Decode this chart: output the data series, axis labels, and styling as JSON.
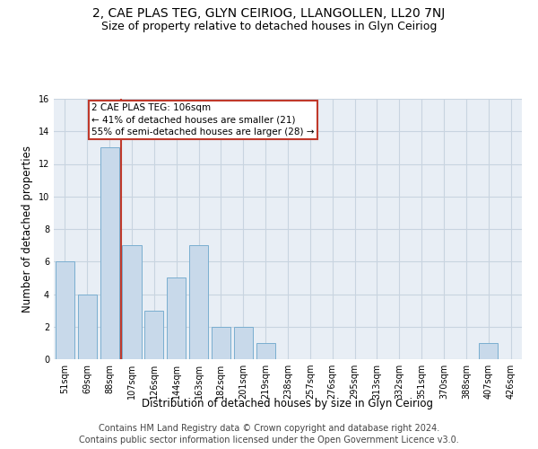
{
  "title": "2, CAE PLAS TEG, GLYN CEIRIOG, LLANGOLLEN, LL20 7NJ",
  "subtitle": "Size of property relative to detached houses in Glyn Ceiriog",
  "xlabel": "Distribution of detached houses by size in Glyn Ceiriog",
  "ylabel": "Number of detached properties",
  "footer1": "Contains HM Land Registry data © Crown copyright and database right 2024.",
  "footer2": "Contains public sector information licensed under the Open Government Licence v3.0.",
  "bins": [
    "51sqm",
    "69sqm",
    "88sqm",
    "107sqm",
    "126sqm",
    "144sqm",
    "163sqm",
    "182sqm",
    "201sqm",
    "219sqm",
    "238sqm",
    "257sqm",
    "276sqm",
    "295sqm",
    "313sqm",
    "332sqm",
    "351sqm",
    "370sqm",
    "388sqm",
    "407sqm",
    "426sqm"
  ],
  "values": [
    6,
    4,
    13,
    7,
    3,
    5,
    7,
    2,
    2,
    1,
    0,
    0,
    0,
    0,
    0,
    0,
    0,
    0,
    0,
    1,
    0
  ],
  "bar_color": "#c8d9ea",
  "bar_edge_color": "#7aaed0",
  "grid_color": "#c8d4e0",
  "background_color": "#e8eef5",
  "property_label": "2 CAE PLAS TEG: 106sqm",
  "annotation_line1": "← 41% of detached houses are smaller (21)",
  "annotation_line2": "55% of semi-detached houses are larger (28) →",
  "annotation_box_color": "#ffffff",
  "annotation_border_color": "#c0392b",
  "vline_color": "#c0392b",
  "vline_index": 2.5,
  "ylim": [
    0,
    16
  ],
  "yticks": [
    0,
    2,
    4,
    6,
    8,
    10,
    12,
    14,
    16
  ],
  "title_fontsize": 10,
  "subtitle_fontsize": 9,
  "axis_label_fontsize": 8.5,
  "tick_fontsize": 7,
  "annotation_fontsize": 7.5,
  "footer_fontsize": 7
}
